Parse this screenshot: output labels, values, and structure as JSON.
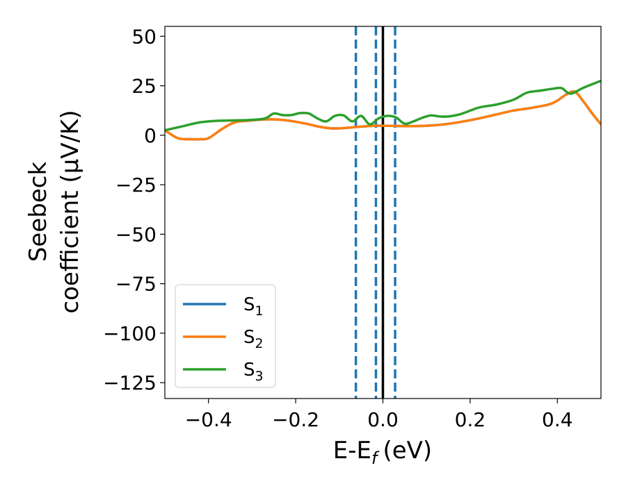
{
  "chart_data": {
    "type": "line",
    "xlabel": "E-E$_f$ (eV)",
    "xlabel_parts": {
      "main": "E-E",
      "sub": "f",
      "unit": "(eV)"
    },
    "ylabel_lines": [
      "Seebeck",
      "coefficient  (μV/K)"
    ],
    "xlim": [
      -0.5,
      0.5
    ],
    "ylim": [
      -133,
      55
    ],
    "xticks": [
      -0.4,
      -0.2,
      0.0,
      0.2,
      0.4
    ],
    "xtick_labels": [
      "−0.4",
      "−0.2",
      "0.0",
      "0.2",
      "0.4"
    ],
    "yticks": [
      50,
      25,
      0,
      -25,
      -50,
      -75,
      -100,
      -125
    ],
    "ytick_labels": [
      "50",
      "25",
      "0",
      "−25",
      "−50",
      "−75",
      "−100",
      "−125"
    ],
    "grid": false,
    "legend_position": "lower-left",
    "series": [
      {
        "name": "S1",
        "legend_main": "S",
        "legend_sub": "1",
        "color": "#1f77b4",
        "x": [
          -0.5,
          -0.47,
          -0.44,
          -0.42,
          -0.4,
          -0.37,
          -0.34,
          -0.3,
          -0.27,
          -0.25,
          -0.22,
          -0.18,
          -0.15,
          -0.12,
          -0.1,
          -0.08,
          -0.06,
          -0.04,
          -0.02,
          0.0,
          0.03,
          0.06,
          0.1,
          0.14,
          0.18,
          0.22,
          0.26,
          0.3,
          0.34,
          0.38,
          0.4,
          0.42,
          0.44,
          0.46,
          0.48,
          0.5
        ],
        "y": [
          2.5,
          -1.5,
          -2,
          -2,
          -1.5,
          3,
          6.5,
          7.5,
          8,
          8,
          7.5,
          6,
          4.5,
          3.5,
          3.5,
          3.8,
          4.2,
          4.5,
          4.8,
          4.8,
          4.7,
          4.6,
          4.8,
          5.5,
          6.8,
          8.5,
          10.5,
          12.5,
          13.8,
          15.5,
          17.5,
          20.5,
          22,
          17,
          11,
          5.5
        ]
      },
      {
        "name": "S2",
        "legend_main": "S",
        "legend_sub": "2",
        "color": "#ff7f0e",
        "x": [
          -0.5,
          -0.47,
          -0.44,
          -0.42,
          -0.4,
          -0.37,
          -0.34,
          -0.3,
          -0.27,
          -0.25,
          -0.22,
          -0.18,
          -0.15,
          -0.12,
          -0.1,
          -0.08,
          -0.06,
          -0.04,
          -0.02,
          0.0,
          0.03,
          0.06,
          0.1,
          0.14,
          0.18,
          0.22,
          0.26,
          0.3,
          0.34,
          0.38,
          0.4,
          0.42,
          0.44,
          0.46,
          0.48,
          0.5
        ],
        "y": [
          2.5,
          -1.5,
          -2,
          -2,
          -1.5,
          3,
          6.5,
          7.5,
          8,
          8,
          7.5,
          6,
          4.5,
          3.5,
          3.5,
          3.8,
          4.2,
          4.5,
          4.8,
          4.8,
          4.7,
          4.6,
          4.8,
          5.5,
          6.8,
          8.5,
          10.5,
          12.5,
          13.8,
          15.5,
          17.5,
          20.5,
          22,
          17,
          11,
          5.5
        ]
      },
      {
        "name": "S3",
        "legend_main": "S",
        "legend_sub": "3",
        "color": "#2ca02c",
        "x": [
          -0.5,
          -0.46,
          -0.42,
          -0.38,
          -0.34,
          -0.3,
          -0.27,
          -0.25,
          -0.23,
          -0.21,
          -0.19,
          -0.17,
          -0.15,
          -0.13,
          -0.11,
          -0.09,
          -0.07,
          -0.05,
          -0.03,
          -0.01,
          0.01,
          0.03,
          0.05,
          0.07,
          0.09,
          0.11,
          0.13,
          0.15,
          0.18,
          0.22,
          0.26,
          0.3,
          0.33,
          0.36,
          0.39,
          0.41,
          0.43,
          0.46,
          0.5
        ],
        "y": [
          2.5,
          4.5,
          6.5,
          7.3,
          7.5,
          7.8,
          8.5,
          11,
          10.2,
          10.2,
          11.2,
          11,
          8.5,
          7,
          9.8,
          10,
          7,
          9.8,
          5.5,
          8.5,
          9.8,
          9,
          5.8,
          7,
          8.8,
          10,
          9.5,
          9.5,
          10.8,
          14,
          15.5,
          18,
          21.5,
          22.5,
          23.5,
          23.8,
          21,
          24,
          27.5
        ]
      }
    ],
    "vertical_lines": [
      {
        "x": -0.062,
        "style": "dashed",
        "color": "#1f77b4"
      },
      {
        "x": -0.016,
        "style": "dashed",
        "color": "#1f77b4"
      },
      {
        "x": 0.0,
        "style": "solid",
        "color": "#000000"
      },
      {
        "x": 0.028,
        "style": "dashed",
        "color": "#1f77b4"
      }
    ]
  }
}
